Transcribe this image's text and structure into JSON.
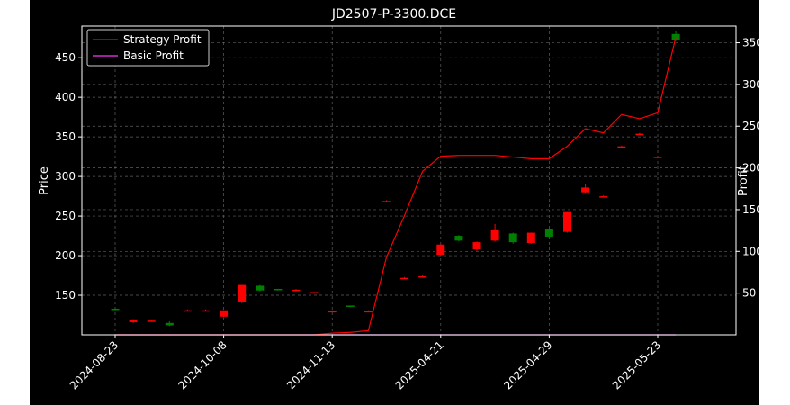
{
  "chart_data": {
    "type": "candlestick+line",
    "title": "JD2507-P-3300.DCE",
    "ylabel": "Price",
    "y2label": "Profit",
    "ylim": [
      100,
      490
    ],
    "y2lim": [
      0,
      370
    ],
    "yticks": [
      150,
      200,
      250,
      300,
      350,
      400,
      450
    ],
    "y2ticks": [
      50,
      100,
      150,
      200,
      250,
      300,
      350
    ],
    "grid": true,
    "legend_position": "top-left",
    "xtick_labels": [
      "2024-08-23",
      "2024-10-08",
      "2024-11-13",
      "2025-04-21",
      "2025-04-29",
      "2025-05-23"
    ],
    "xtick_index": [
      0,
      6,
      12,
      18,
      24,
      30
    ],
    "n_bars": 32,
    "candles": [
      {
        "o": 132,
        "h": 134,
        "l": 131,
        "c": 133
      },
      {
        "o": 119,
        "h": 120,
        "l": 115,
        "c": 116
      },
      {
        "o": 118,
        "h": 119,
        "l": 117,
        "c": 117.5
      },
      {
        "o": 112,
        "h": 117,
        "l": 111,
        "c": 115
      },
      {
        "o": 131,
        "h": 132,
        "l": 130,
        "c": 130.5
      },
      {
        "o": 131,
        "h": 132,
        "l": 130,
        "c": 130.5
      },
      {
        "o": 131,
        "h": 131,
        "l": 122,
        "c": 123
      },
      {
        "o": 163,
        "h": 163,
        "l": 140,
        "c": 141
      },
      {
        "o": 156,
        "h": 163,
        "l": 155,
        "c": 162
      },
      {
        "o": 157,
        "h": 158,
        "l": 156,
        "c": 158
      },
      {
        "o": 157,
        "h": 158,
        "l": 155,
        "c": 156
      },
      {
        "o": 154,
        "h": 154,
        "l": 152,
        "c": 152.5
      },
      {
        "o": 130,
        "h": 131,
        "l": 129,
        "c": 129.5
      },
      {
        "o": 136,
        "h": 137,
        "l": 135,
        "c": 137
      },
      {
        "o": 130,
        "h": 131,
        "l": 129,
        "c": 129.5
      },
      {
        "o": 269,
        "h": 270,
        "l": 268,
        "c": 268.5
      },
      {
        "o": 172,
        "h": 173,
        "l": 171,
        "c": 171.5
      },
      {
        "o": 174,
        "h": 175,
        "l": 173,
        "c": 173.5
      },
      {
        "o": 214,
        "h": 214,
        "l": 200,
        "c": 201
      },
      {
        "o": 219,
        "h": 226,
        "l": 218,
        "c": 225
      },
      {
        "o": 217,
        "h": 218,
        "l": 206,
        "c": 208
      },
      {
        "o": 232,
        "h": 240,
        "l": 218,
        "c": 219
      },
      {
        "o": 217,
        "h": 229,
        "l": 215,
        "c": 228
      },
      {
        "o": 229,
        "h": 229,
        "l": 215,
        "c": 216
      },
      {
        "o": 224,
        "h": 234,
        "l": 223,
        "c": 233
      },
      {
        "o": 255,
        "h": 255,
        "l": 229,
        "c": 230
      },
      {
        "o": 286,
        "h": 290,
        "l": 279,
        "c": 280
      },
      {
        "o": 275,
        "h": 276,
        "l": 274,
        "c": 274.5
      },
      {
        "o": 338,
        "h": 339,
        "l": 337,
        "c": 337.5
      },
      {
        "o": 354,
        "h": 355,
        "l": 353,
        "c": 353.5
      },
      {
        "o": 325,
        "h": 326,
        "l": 324,
        "c": 324.5
      },
      {
        "o": 472,
        "h": 484,
        "l": 471,
        "c": 480
      }
    ],
    "series": [
      {
        "name": "Strategy Profit",
        "color": "#ff0000",
        "values": [
          0,
          0,
          0,
          0,
          0,
          0,
          0,
          0,
          0,
          0,
          0,
          0,
          2,
          3,
          5,
          93,
          143,
          196,
          214,
          215,
          215,
          215,
          213,
          211,
          211,
          226,
          247,
          242,
          264,
          259,
          266,
          357
        ]
      },
      {
        "name": "Basic Profit",
        "color": "#ff33ff",
        "values": [
          0,
          0,
          0,
          0,
          0,
          0,
          0,
          0,
          0,
          0,
          0,
          0,
          0,
          0,
          0,
          0,
          0,
          0,
          0,
          0,
          0,
          0,
          0,
          0,
          0,
          0,
          0,
          0,
          0,
          0,
          0,
          0
        ]
      }
    ],
    "candle_colors": {
      "up": "#008000",
      "down": "#ff0000"
    }
  }
}
